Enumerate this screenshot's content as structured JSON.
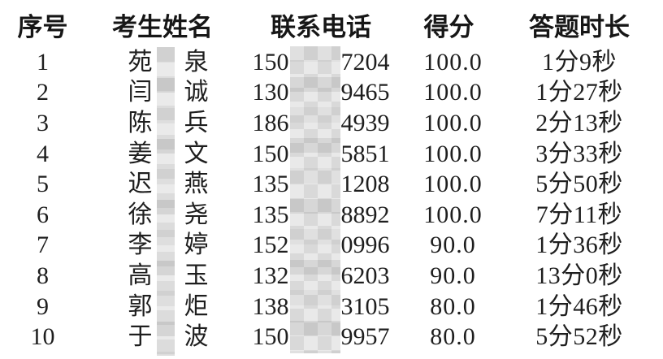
{
  "table": {
    "headers": {
      "no": "序号",
      "name": "考生姓名",
      "phone": "联系电话",
      "score": "得分",
      "duration": "答题时长"
    },
    "rows": [
      {
        "no": "1",
        "name_first": "苑",
        "name_last": "泉",
        "phone_prefix": "150",
        "phone_suffix": "7204",
        "score": "100.0",
        "duration": "1分9秒"
      },
      {
        "no": "2",
        "name_first": "闫",
        "name_last": "诚",
        "phone_prefix": "130",
        "phone_suffix": "9465",
        "score": "100.0",
        "duration": "1分27秒"
      },
      {
        "no": "3",
        "name_first": "陈",
        "name_last": "兵",
        "phone_prefix": "186",
        "phone_suffix": "4939",
        "score": "100.0",
        "duration": "2分13秒"
      },
      {
        "no": "4",
        "name_first": "姜",
        "name_last": "文",
        "phone_prefix": "150",
        "phone_suffix": "5851",
        "score": "100.0",
        "duration": "3分33秒"
      },
      {
        "no": "5",
        "name_first": "迟",
        "name_last": "燕",
        "phone_prefix": "135",
        "phone_suffix": "1208",
        "score": "100.0",
        "duration": "5分50秒"
      },
      {
        "no": "6",
        "name_first": "徐",
        "name_last": "尧",
        "phone_prefix": "135",
        "phone_suffix": "8892",
        "score": "100.0",
        "duration": "7分11秒"
      },
      {
        "no": "7",
        "name_first": "李",
        "name_last": "婷",
        "phone_prefix": "152",
        "phone_suffix": "0996",
        "score": "90.0",
        "duration": "1分36秒"
      },
      {
        "no": "8",
        "name_first": "高",
        "name_last": "玉",
        "phone_prefix": "132",
        "phone_suffix": "6203",
        "score": "90.0",
        "duration": "13分0秒"
      },
      {
        "no": "9",
        "name_first": "郭",
        "name_last": "炬",
        "phone_prefix": "138",
        "phone_suffix": "3105",
        "score": "80.0",
        "duration": "1分46秒"
      },
      {
        "no": "10",
        "name_first": "于",
        "name_last": "波",
        "phone_prefix": "150",
        "phone_suffix": "9957",
        "score": "80.0",
        "duration": "5分52秒"
      }
    ],
    "censor_color_light": "#e9e9e9",
    "censor_color_dark": "#d9d9d9"
  }
}
